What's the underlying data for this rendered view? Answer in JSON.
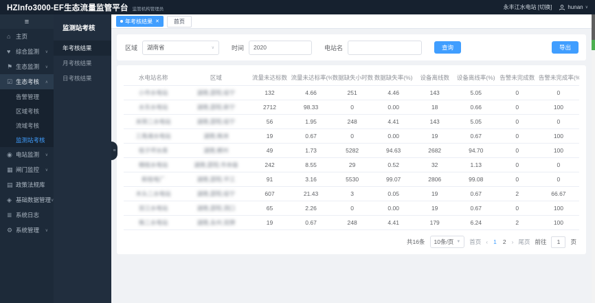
{
  "header": {
    "title": "HZInfo3000-EF生态流量监管平台",
    "subtitle": "监管机构管理员",
    "station": "永丰江水电站",
    "switch_label": "[切换]",
    "username": "hunan",
    "user_caret": "∨"
  },
  "colors": {
    "accent": "#409eff",
    "header_bg": "#16212f",
    "nav_bg": "#1d2a39",
    "panel_bg": "#212e3e",
    "content_bg": "#f0f2f5"
  },
  "sidebar": {
    "hamburger_icon": "≡",
    "items": [
      {
        "icon": "home-icon",
        "glyph": "⌂",
        "label": "主页",
        "arrow": "",
        "active": false
      },
      {
        "icon": "heart-icon",
        "glyph": "♥",
        "label": "综合监测",
        "arrow": "∨",
        "active": false
      },
      {
        "icon": "flag-icon",
        "glyph": "⚑",
        "label": "生态监测",
        "arrow": "∨",
        "active": false
      },
      {
        "icon": "checkbox-icon",
        "glyph": "☑",
        "label": "生态考核",
        "arrow": "∧",
        "active": true,
        "children": [
          {
            "label": "告警管理",
            "active": false
          },
          {
            "label": "区域考核",
            "active": false
          },
          {
            "label": "流域考核",
            "active": false
          },
          {
            "label": "监测站考核",
            "active": true
          }
        ]
      },
      {
        "icon": "station-icon",
        "glyph": "◉",
        "label": "电站监测",
        "arrow": "∨",
        "active": false
      },
      {
        "icon": "gate-icon",
        "glyph": "▦",
        "label": "闸门监控",
        "arrow": "∨",
        "active": false
      },
      {
        "icon": "book-icon",
        "glyph": "▤",
        "label": "政策法规库",
        "arrow": "",
        "active": false
      },
      {
        "icon": "database-icon",
        "glyph": "◈",
        "label": "基础数据管理",
        "arrow": "∨",
        "active": false
      },
      {
        "icon": "log-icon",
        "glyph": "≣",
        "label": "系统日志",
        "arrow": "",
        "active": false
      },
      {
        "icon": "gear-icon",
        "glyph": "⚙",
        "label": "系统管理",
        "arrow": "∨",
        "active": false
      }
    ]
  },
  "panel": {
    "title": "监测站考核",
    "items": [
      {
        "label": "年考核结果",
        "active": true
      },
      {
        "label": "月考核结果",
        "active": false
      },
      {
        "label": "日考核结果",
        "active": false
      }
    ]
  },
  "tabs": {
    "active": {
      "label": "年考核结果",
      "close": "✕"
    },
    "others": [
      {
        "label": "首页"
      }
    ]
  },
  "filters": {
    "region_label": "区域",
    "region_value": "湖南省",
    "time_label": "时间",
    "time_value": "2020",
    "station_label": "电站名",
    "station_value": "",
    "search_label": "查询",
    "export_label": "导出"
  },
  "table": {
    "columns": [
      "水电站名称",
      "区域",
      "流量未达标数",
      "流量未达标率(%)",
      "数据缺失小时数",
      "数据缺失率(%)",
      "设备离线数",
      "设备离线率(%)",
      "告警未完成数",
      "告警未完成率(%)"
    ],
    "rows": [
      {
        "name": "小市水电站",
        "region": "湖南,邵阳,绥宁",
        "values": [
          "132",
          "4.66",
          "251",
          "4.46",
          "143",
          "5.05",
          "0",
          "0"
        ]
      },
      {
        "name": "水东水电站",
        "region": "湖南,邵阳,新宁",
        "values": [
          "2712",
          "98.33",
          "0",
          "0.00",
          "18",
          "0.66",
          "0",
          "100"
        ]
      },
      {
        "name": "米筛二水电站",
        "region": "湖南,邵阳,绥宁",
        "values": [
          "56",
          "1.95",
          "248",
          "4.41",
          "143",
          "5.05",
          "0",
          "0"
        ]
      },
      {
        "name": "三角滩水电站",
        "region": "湖南,株洲",
        "values": [
          "19",
          "0.67",
          "0",
          "0.00",
          "19",
          "0.67",
          "0",
          "100"
        ]
      },
      {
        "name": "桂子坪水库",
        "region": "湖南,郴州",
        "values": [
          "49",
          "1.73",
          "5282",
          "94.63",
          "2682",
          "94.70",
          "0",
          "100"
        ]
      },
      {
        "name": "楠桂水电站",
        "region": "湖南,邵阳,市本级",
        "values": [
          "242",
          "8.55",
          "29",
          "0.52",
          "32",
          "1.13",
          "0",
          "0"
        ]
      },
      {
        "name": "新桂电厂",
        "region": "湖南,邵阳,平江",
        "values": [
          "91",
          "3.16",
          "5530",
          "99.07",
          "2806",
          "99.08",
          "0",
          "0"
        ]
      },
      {
        "name": "木头二水电站",
        "region": "湖南,邵阳,绥宁",
        "values": [
          "607",
          "21.43",
          "3",
          "0.05",
          "19",
          "0.67",
          "2",
          "66.67"
        ]
      },
      {
        "name": "双江水电站",
        "region": "湖南,邵阳,洞口",
        "values": [
          "65",
          "2.26",
          "0",
          "0.00",
          "19",
          "0.67",
          "0",
          "100"
        ]
      },
      {
        "name": "株二水电站",
        "region": "湖南,永州,双牌",
        "values": [
          "19",
          "0.67",
          "248",
          "4.41",
          "179",
          "6.24",
          "2",
          "100"
        ]
      }
    ]
  },
  "pagination": {
    "total": "共16条",
    "page_size": "10条/页",
    "first": "首页",
    "prev": "‹",
    "pages": [
      "1",
      "2"
    ],
    "current": "1",
    "next": "›",
    "last": "尾页",
    "goto_prefix": "前往",
    "goto_value": "1",
    "goto_suffix": "页"
  }
}
